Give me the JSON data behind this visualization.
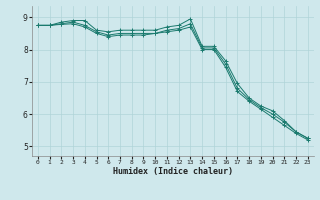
{
  "xlabel": "Humidex (Indice chaleur)",
  "background_color": "#cfe8ec",
  "grid_color": "#b0d4d8",
  "line_color": "#1a7a6e",
  "xlim": [
    -0.5,
    23.5
  ],
  "ylim": [
    4.7,
    9.35
  ],
  "yticks": [
    5,
    6,
    7,
    8,
    9
  ],
  "xticks": [
    0,
    1,
    2,
    3,
    4,
    5,
    6,
    7,
    8,
    9,
    10,
    11,
    12,
    13,
    14,
    15,
    16,
    17,
    18,
    19,
    20,
    21,
    22,
    23
  ],
  "lines": [
    {
      "x": [
        0,
        1,
        2,
        3,
        4,
        5,
        6,
        7,
        8,
        9,
        10,
        11,
        12,
        13,
        14,
        15,
        16,
        17,
        18,
        19,
        20,
        21,
        22,
        23
      ],
      "y": [
        8.75,
        8.75,
        8.85,
        8.9,
        8.9,
        8.6,
        8.55,
        8.6,
        8.6,
        8.6,
        8.6,
        8.7,
        8.75,
        8.95,
        8.1,
        8.1,
        7.65,
        6.95,
        6.5,
        6.25,
        6.1,
        5.8,
        5.45,
        5.25
      ]
    },
    {
      "x": [
        0,
        1,
        2,
        3,
        4,
        5,
        6,
        7,
        8,
        9,
        10,
        11,
        12,
        13,
        14,
        15,
        16,
        17,
        18,
        19,
        20,
        21,
        22,
        23
      ],
      "y": [
        8.75,
        8.75,
        8.8,
        8.85,
        8.75,
        8.55,
        8.45,
        8.5,
        8.5,
        8.5,
        8.5,
        8.6,
        8.65,
        8.8,
        8.05,
        8.05,
        7.55,
        6.8,
        6.45,
        6.2,
        6.0,
        5.75,
        5.45,
        5.25
      ]
    },
    {
      "x": [
        0,
        1,
        2,
        3,
        4,
        5,
        6,
        7,
        8,
        9,
        10,
        11,
        12,
        13,
        14,
        15,
        16,
        17,
        18,
        19,
        20,
        21,
        22,
        23
      ],
      "y": [
        8.75,
        8.75,
        8.78,
        8.8,
        8.7,
        8.5,
        8.4,
        8.45,
        8.45,
        8.45,
        8.5,
        8.55,
        8.6,
        8.7,
        8.0,
        8.0,
        7.45,
        6.7,
        6.4,
        6.15,
        5.9,
        5.65,
        5.4,
        5.2
      ]
    }
  ]
}
